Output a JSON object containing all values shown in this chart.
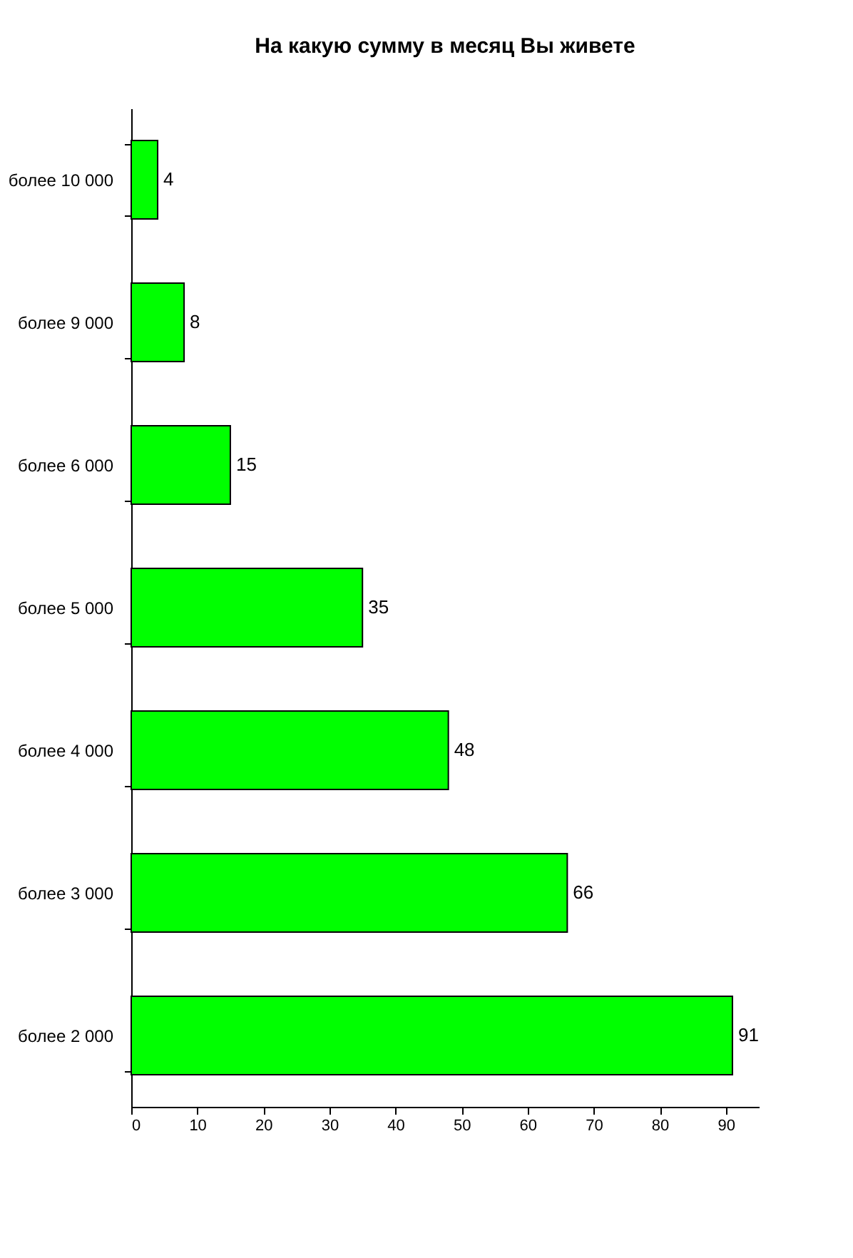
{
  "chart_data": {
    "type": "bar",
    "orientation": "horizontal",
    "title": "На какую сумму в месяц Вы живете",
    "categories": [
      "более 10 000",
      "более 9 000",
      "более 6 000",
      "более 5 000",
      "более 4 000",
      "более 3 000",
      "более 2 000"
    ],
    "values": [
      4,
      8,
      15,
      35,
      48,
      66,
      91
    ],
    "color": "#00ff00",
    "xlim": [
      0,
      95
    ],
    "xticks": [
      0,
      10,
      20,
      30,
      40,
      50,
      60,
      70,
      80,
      90
    ],
    "data_labels": true
  }
}
